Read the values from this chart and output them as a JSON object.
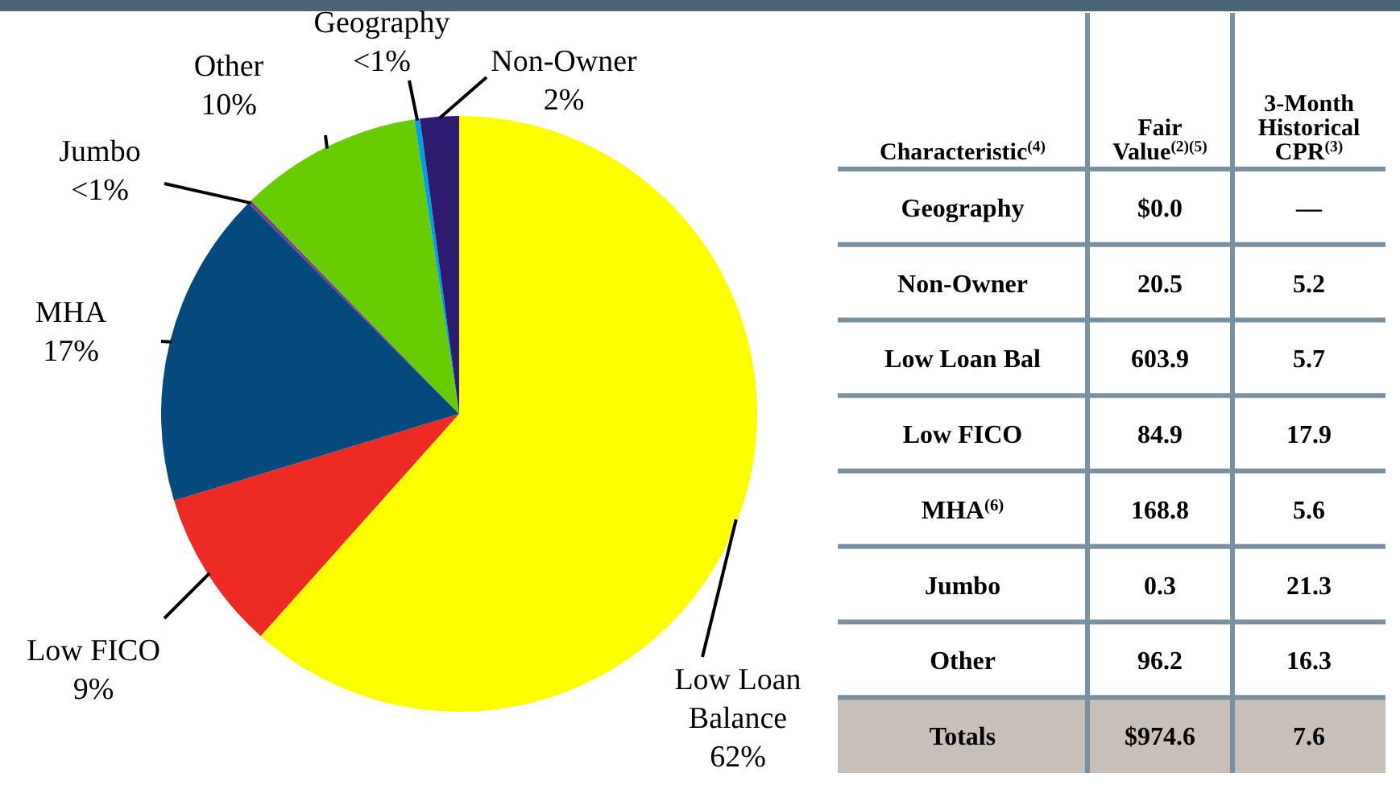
{
  "chart_data": [
    {
      "type": "pie",
      "categories": [
        "Low Loan Balance",
        "Low FICO",
        "MHA",
        "Jumbo",
        "Other",
        "Geography",
        "Non-Owner"
      ],
      "values": [
        61.6,
        8.7,
        17.2,
        0.2,
        9.9,
        0.3,
        2.1
      ],
      "value_labels": [
        "62%",
        "9%",
        "17%",
        "<1%",
        "10%",
        "<1%",
        "2%"
      ],
      "colors": [
        "#ffff00",
        "#ee2a24",
        "#044a7c",
        "#7b3f8c",
        "#66cc00",
        "#00a0e0",
        "#2e1a6e"
      ]
    },
    {
      "type": "other",
      "xlabel": "Characteristic$^{(4)}$",
      "categories": [
        "Geography",
        "Non-Owner",
        "Low Loan Bal",
        "Low FICO",
        "MHA$^{(6)}$",
        "Jumbo",
        "Other",
        "Totals"
      ],
      "series": [
        {
          "name": "Fair Value$^{(2)(5)}$",
          "values": [
            0.0,
            20.5,
            603.9,
            84.9,
            168.8,
            0.3,
            96.2,
            974.6
          ],
          "value_labels": [
            "$0.0",
            "20.5",
            "603.9",
            "84.9",
            "168.8",
            "0.3",
            "96.2",
            "$974.6"
          ]
        },
        {
          "name": "3-Month Historical CPR$^{(3)}$",
          "values": [
            null,
            5.2,
            5.7,
            17.9,
            5.6,
            21.3,
            16.3,
            7.6
          ],
          "value_labels": [
            "—",
            "5.2",
            "5.7",
            "17.9",
            "5.6",
            "21.3",
            "16.3",
            "7.6"
          ]
        }
      ]
    }
  ]
}
